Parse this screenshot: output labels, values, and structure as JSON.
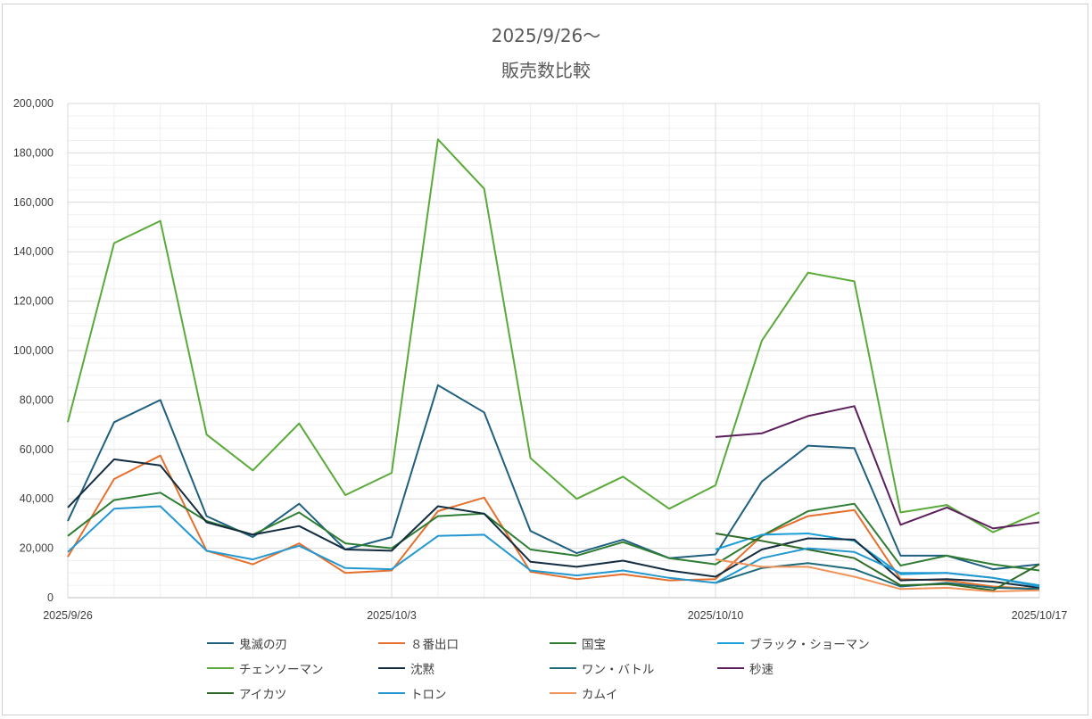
{
  "chart_data": {
    "type": "line",
    "title": "2025/9/26〜",
    "subtitle": "販売数比較",
    "xlabel": "",
    "ylabel": "",
    "ylim": [
      0,
      200000
    ],
    "y_ticks": [
      "0",
      "20,000",
      "40,000",
      "60,000",
      "80,000",
      "100,000",
      "120,000",
      "140,000",
      "160,000",
      "180,000",
      "200,000"
    ],
    "x_tick_labels": [
      "2025/9/26",
      "2025/10/3",
      "2025/10/10",
      "2025/10/17"
    ],
    "x_tick_positions": [
      0,
      7,
      14,
      21
    ],
    "grid": true,
    "legend_position": "bottom",
    "series": [
      {
        "name": "鬼滅の刃",
        "color": "#1f5f7f",
        "values": [
          31000,
          71000,
          80000,
          33000,
          24500,
          38000,
          19500,
          24500,
          86000,
          75000,
          27000,
          18000,
          23500,
          16000,
          17500,
          47000,
          61500,
          60500,
          17000,
          17000,
          11500,
          13500
        ]
      },
      {
        "name": "８番出口",
        "color": "#e5702e",
        "values": [
          16500,
          48000,
          57500,
          19000,
          13500,
          22000,
          10000,
          11000,
          35000,
          40500,
          10500,
          7500,
          9500,
          7000,
          7500,
          25000,
          33000,
          35500,
          7500,
          7000,
          4500,
          3500
        ]
      },
      {
        "name": "国宝",
        "color": "#2e7d32",
        "values": [
          25000,
          39500,
          42500,
          31000,
          25500,
          34500,
          22000,
          20000,
          33000,
          34000,
          19500,
          17000,
          22500,
          16000,
          13500,
          25000,
          35000,
          38000,
          13000,
          17000,
          13500,
          11000
        ]
      },
      {
        "name": "ブラック・ショーマン",
        "color": "#1aa0d8",
        "values": [
          null,
          null,
          null,
          null,
          null,
          null,
          null,
          null,
          null,
          null,
          null,
          null,
          null,
          null,
          19500,
          25500,
          26000,
          23000,
          9500,
          10000,
          8000,
          5000
        ]
      },
      {
        "name": "チェンソーマン",
        "color": "#5aaa3a",
        "values": [
          71000,
          143500,
          152500,
          66000,
          51500,
          70500,
          41500,
          50500,
          185500,
          165500,
          56500,
          40000,
          49000,
          36000,
          45500,
          104000,
          131500,
          128000,
          34500,
          37500,
          26500,
          34500
        ]
      },
      {
        "name": "沈黙",
        "color": "#132c40",
        "values": [
          36500,
          56000,
          53500,
          30500,
          25500,
          29000,
          19500,
          19000,
          37000,
          34000,
          14500,
          12500,
          15000,
          11000,
          8500,
          19500,
          24000,
          23500,
          7000,
          7500,
          6500,
          4000
        ]
      },
      {
        "name": "ワン・バトル",
        "color": "#1c6a7a",
        "values": [
          null,
          null,
          null,
          null,
          null,
          null,
          null,
          null,
          null,
          null,
          null,
          null,
          null,
          null,
          6000,
          12000,
          14000,
          11500,
          4500,
          6000,
          4000,
          3500
        ]
      },
      {
        "name": "秒速",
        "color": "#5c1f5c",
        "values": [
          null,
          null,
          null,
          null,
          null,
          null,
          null,
          null,
          null,
          null,
          null,
          null,
          null,
          null,
          65000,
          66500,
          73500,
          77500,
          29500,
          36500,
          28000,
          30500
        ]
      },
      {
        "name": "アイカツ",
        "color": "#2f6b28",
        "values": [
          null,
          null,
          null,
          null,
          null,
          null,
          null,
          null,
          null,
          null,
          null,
          null,
          null,
          null,
          26000,
          23000,
          19500,
          16000,
          5000,
          5500,
          3000,
          13500
        ]
      },
      {
        "name": "トロン",
        "color": "#2398d0",
        "values": [
          18500,
          36000,
          37000,
          19000,
          15500,
          21000,
          12000,
          11500,
          25000,
          25500,
          11000,
          9000,
          11000,
          8000,
          6000,
          16000,
          20000,
          18500,
          10000,
          10000,
          8000,
          4500
        ]
      },
      {
        "name": "カムイ",
        "color": "#f0935a",
        "values": [
          null,
          null,
          null,
          null,
          null,
          null,
          null,
          null,
          null,
          null,
          null,
          null,
          null,
          null,
          15500,
          12500,
          12500,
          8500,
          3500,
          4000,
          2500,
          3000
        ]
      }
    ]
  }
}
